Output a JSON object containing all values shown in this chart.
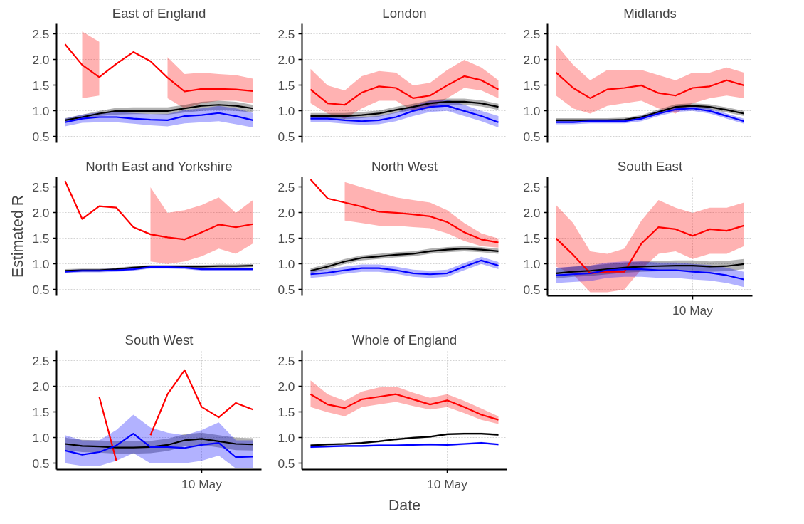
{
  "chart_data": [
    {
      "type": "line",
      "title": "East of England",
      "categories": [
        null,
        null,
        null,
        null,
        null,
        null,
        null,
        null,
        null,
        null,
        null,
        null
      ],
      "ylim": [
        0.38,
        2.7
      ],
      "yticks": [
        {
          "value": 0.5,
          "label": "0.5"
        },
        {
          "value": 1,
          "label": "1.0"
        },
        {
          "value": 1.5,
          "label": "1.5"
        },
        {
          "value": 2,
          "label": "2.0"
        },
        {
          "value": 2.5,
          "label": "2.5"
        }
      ],
      "grid": true,
      "tick_labels": "y",
      "series": [
        {
          "color": "#ff0000",
          "values": [
            2.3,
            1.9,
            1.66,
            1.92,
            2.15,
            1.97,
            1.65,
            1.38,
            1.43,
            1.43,
            1.42,
            1.39
          ],
          "lower": [
            null,
            1.25,
            1.3,
            null,
            null,
            null,
            1.25,
            1.05,
            1.15,
            1.2,
            1.2,
            1.15
          ],
          "upper": [
            null,
            2.55,
            2.35,
            null,
            null,
            null,
            2.05,
            1.72,
            1.75,
            1.72,
            1.7,
            1.63
          ]
        },
        {
          "color": "#000000",
          "values": [
            0.82,
            0.88,
            0.95,
            1.0,
            1.0,
            1.0,
            1.0,
            1.05,
            1.1,
            1.12,
            1.1,
            1.05
          ],
          "lower": [
            0.78,
            0.84,
            0.9,
            0.93,
            0.94,
            0.94,
            0.93,
            0.97,
            1.0,
            1.02,
            1.0,
            0.97
          ],
          "upper": [
            0.86,
            0.93,
            1.0,
            1.06,
            1.07,
            1.07,
            1.07,
            1.12,
            1.18,
            1.2,
            1.18,
            1.12
          ]
        },
        {
          "color": "#0000ff",
          "values": [
            0.78,
            0.85,
            0.88,
            0.88,
            0.85,
            0.83,
            0.82,
            0.9,
            0.92,
            0.96,
            0.9,
            0.82
          ],
          "lower": [
            0.7,
            0.77,
            0.78,
            0.78,
            0.75,
            0.72,
            0.7,
            0.76,
            0.78,
            0.8,
            0.74,
            0.68
          ],
          "upper": [
            0.85,
            0.93,
            0.97,
            0.98,
            0.96,
            0.94,
            0.94,
            1.02,
            1.05,
            1.1,
            1.05,
            0.96
          ]
        }
      ]
    },
    {
      "type": "line",
      "title": "London",
      "categories": [
        null,
        null,
        null,
        null,
        null,
        null,
        null,
        null,
        null,
        null,
        null,
        null
      ],
      "ylim": [
        0.38,
        2.7
      ],
      "yticks": [
        {
          "value": 0.5,
          "label": "0.5"
        },
        {
          "value": 1,
          "label": "1.0"
        },
        {
          "value": 1.5,
          "label": "1.5"
        },
        {
          "value": 2,
          "label": "2.0"
        },
        {
          "value": 2.5,
          "label": "2.5"
        }
      ],
      "grid": true,
      "tick_labels": "y",
      "series": [
        {
          "color": "#ff0000",
          "values": [
            1.42,
            1.15,
            1.12,
            1.36,
            1.48,
            1.45,
            1.25,
            1.3,
            1.5,
            1.68,
            1.6,
            1.42
          ],
          "lower": [
            1.15,
            0.95,
            0.85,
            1.05,
            1.2,
            1.2,
            1.0,
            1.05,
            1.25,
            1.45,
            1.4,
            1.25
          ],
          "upper": [
            1.82,
            1.5,
            1.4,
            1.68,
            1.78,
            1.75,
            1.5,
            1.55,
            1.8,
            2.0,
            1.85,
            1.6
          ]
        },
        {
          "color": "#000000",
          "values": [
            0.9,
            0.9,
            0.9,
            0.92,
            0.95,
            1.02,
            1.08,
            1.15,
            1.18,
            1.18,
            1.15,
            1.08
          ],
          "lower": [
            0.84,
            0.84,
            0.84,
            0.86,
            0.89,
            0.96,
            1.02,
            1.09,
            1.12,
            1.12,
            1.09,
            1.02
          ],
          "upper": [
            0.96,
            0.96,
            0.96,
            0.98,
            1.01,
            1.08,
            1.14,
            1.21,
            1.24,
            1.24,
            1.21,
            1.14
          ]
        },
        {
          "color": "#0000ff",
          "values": [
            0.85,
            0.85,
            0.82,
            0.8,
            0.82,
            0.88,
            1.0,
            1.08,
            1.1,
            1.0,
            0.9,
            0.78
          ],
          "lower": [
            0.78,
            0.78,
            0.75,
            0.73,
            0.74,
            0.8,
            0.9,
            0.98,
            1.0,
            0.9,
            0.8,
            0.68
          ],
          "upper": [
            0.93,
            0.93,
            0.9,
            0.88,
            0.9,
            0.97,
            1.1,
            1.2,
            1.22,
            1.12,
            1.0,
            0.9
          ]
        }
      ]
    },
    {
      "type": "line",
      "title": "Midlands",
      "categories": [
        null,
        null,
        null,
        null,
        null,
        null,
        null,
        null,
        null,
        null,
        null,
        null
      ],
      "ylim": [
        0.38,
        2.7
      ],
      "yticks": [
        {
          "value": 0.5,
          "label": "0.5"
        },
        {
          "value": 1,
          "label": "1.0"
        },
        {
          "value": 1.5,
          "label": "1.5"
        },
        {
          "value": 2,
          "label": "2.0"
        },
        {
          "value": 2.5,
          "label": "2.5"
        }
      ],
      "grid": true,
      "tick_labels": "y",
      "series": [
        {
          "color": "#ff0000",
          "values": [
            1.75,
            1.45,
            1.25,
            1.42,
            1.45,
            1.5,
            1.35,
            1.3,
            1.45,
            1.48,
            1.6,
            1.5
          ],
          "lower": [
            1.3,
            1.05,
            0.95,
            1.1,
            1.15,
            1.2,
            1.05,
            0.95,
            1.15,
            1.25,
            1.3,
            1.25
          ],
          "upper": [
            2.3,
            1.9,
            1.6,
            1.8,
            1.8,
            1.8,
            1.7,
            1.6,
            1.75,
            1.75,
            1.85,
            1.75
          ]
        },
        {
          "color": "#000000",
          "values": [
            0.82,
            0.82,
            0.82,
            0.82,
            0.83,
            0.88,
            0.98,
            1.08,
            1.1,
            1.08,
            1.02,
            0.95
          ],
          "lower": [
            0.78,
            0.78,
            0.78,
            0.78,
            0.79,
            0.84,
            0.93,
            1.03,
            1.05,
            1.03,
            0.97,
            0.9
          ],
          "upper": [
            0.86,
            0.86,
            0.86,
            0.86,
            0.87,
            0.92,
            1.03,
            1.13,
            1.15,
            1.13,
            1.07,
            1.0
          ]
        },
        {
          "color": "#0000ff",
          "values": [
            0.78,
            0.78,
            0.8,
            0.8,
            0.8,
            0.85,
            0.95,
            1.03,
            1.05,
            1.0,
            0.9,
            0.8
          ],
          "lower": [
            0.74,
            0.74,
            0.76,
            0.76,
            0.76,
            0.8,
            0.9,
            0.98,
            1.0,
            0.95,
            0.85,
            0.75
          ],
          "upper": [
            0.82,
            0.82,
            0.84,
            0.84,
            0.84,
            0.9,
            1.0,
            1.08,
            1.1,
            1.05,
            0.95,
            0.85
          ]
        }
      ]
    },
    {
      "type": "line",
      "title": "North East and Yorkshire",
      "ylabel": "Estimated R",
      "categories": [
        null,
        null,
        null,
        null,
        null,
        null,
        null,
        null,
        null,
        null,
        null,
        null
      ],
      "ylim": [
        0.38,
        2.7
      ],
      "yticks": [
        {
          "value": 0.5,
          "label": "0.5"
        },
        {
          "value": 1,
          "label": "1.0"
        },
        {
          "value": 1.5,
          "label": "1.5"
        },
        {
          "value": 2,
          "label": "2.0"
        },
        {
          "value": 2.5,
          "label": "2.5"
        }
      ],
      "grid": true,
      "tick_labels": "y",
      "series": [
        {
          "color": "#ff0000",
          "values": [
            2.62,
            1.88,
            2.13,
            2.1,
            1.72,
            1.58,
            1.52,
            1.48,
            1.62,
            1.77,
            1.72,
            1.78
          ],
          "lower": [
            null,
            null,
            null,
            null,
            null,
            1.05,
            1.0,
            1.05,
            1.15,
            1.3,
            1.2,
            1.4
          ],
          "upper": [
            null,
            null,
            null,
            null,
            null,
            2.5,
            2.0,
            2.05,
            2.15,
            2.3,
            2.0,
            2.25
          ]
        },
        {
          "color": "#000000",
          "values": [
            0.87,
            0.88,
            0.88,
            0.9,
            0.93,
            0.95,
            0.95,
            0.95,
            0.95,
            0.96,
            0.96,
            0.97
          ],
          "lower": [
            0.84,
            0.85,
            0.85,
            0.87,
            0.9,
            0.92,
            0.92,
            0.92,
            0.92,
            0.93,
            0.93,
            0.94
          ],
          "upper": [
            0.9,
            0.91,
            0.91,
            0.93,
            0.96,
            0.98,
            0.98,
            0.98,
            0.98,
            0.99,
            0.99,
            1.0
          ]
        },
        {
          "color": "#0000ff",
          "values": [
            0.85,
            0.87,
            0.87,
            0.88,
            0.9,
            0.94,
            0.94,
            0.93,
            0.9,
            0.9,
            0.9,
            0.9
          ],
          "lower": [
            0.82,
            0.84,
            0.84,
            0.85,
            0.87,
            0.91,
            0.91,
            0.9,
            0.87,
            0.87,
            0.87,
            0.87
          ],
          "upper": [
            0.88,
            0.9,
            0.9,
            0.91,
            0.93,
            0.97,
            0.97,
            0.96,
            0.93,
            0.93,
            0.93,
            0.93
          ]
        }
      ]
    },
    {
      "type": "line",
      "title": "North West",
      "categories": [
        null,
        null,
        null,
        null,
        null,
        null,
        null,
        null,
        null,
        null,
        null,
        null
      ],
      "ylim": [
        0.38,
        2.7
      ],
      "yticks": [
        {
          "value": 0.5,
          "label": "0.5"
        },
        {
          "value": 1,
          "label": "1.0"
        },
        {
          "value": 1.5,
          "label": "1.5"
        },
        {
          "value": 2,
          "label": "2.0"
        },
        {
          "value": 2.5,
          "label": "2.5"
        }
      ],
      "grid": true,
      "tick_labels": "y",
      "series": [
        {
          "color": "#ff0000",
          "values": [
            2.65,
            2.28,
            2.2,
            2.12,
            2.02,
            2.0,
            1.97,
            1.93,
            1.82,
            1.62,
            1.48,
            1.42
          ],
          "lower": [
            null,
            null,
            1.85,
            1.8,
            1.75,
            1.75,
            1.72,
            1.7,
            1.6,
            1.45,
            1.35,
            1.32
          ],
          "upper": [
            null,
            null,
            2.6,
            2.5,
            2.4,
            2.3,
            2.25,
            2.2,
            2.05,
            1.8,
            1.6,
            1.5
          ]
        },
        {
          "color": "#000000",
          "values": [
            0.87,
            0.95,
            1.05,
            1.12,
            1.15,
            1.18,
            1.2,
            1.25,
            1.28,
            1.3,
            1.28,
            1.25
          ],
          "lower": [
            0.82,
            0.9,
            1.0,
            1.07,
            1.1,
            1.13,
            1.15,
            1.2,
            1.23,
            1.25,
            1.23,
            1.2
          ],
          "upper": [
            0.92,
            1.0,
            1.1,
            1.17,
            1.2,
            1.23,
            1.25,
            1.3,
            1.33,
            1.35,
            1.33,
            1.3
          ]
        },
        {
          "color": "#0000ff",
          "values": [
            0.8,
            0.83,
            0.88,
            0.92,
            0.92,
            0.88,
            0.82,
            0.8,
            0.82,
            0.95,
            1.07,
            0.97
          ],
          "lower": [
            0.73,
            0.76,
            0.81,
            0.85,
            0.85,
            0.81,
            0.75,
            0.73,
            0.75,
            0.88,
            1.0,
            0.9
          ],
          "upper": [
            0.87,
            0.9,
            0.95,
            0.99,
            0.99,
            0.95,
            0.89,
            0.87,
            0.89,
            1.02,
            1.14,
            1.04
          ]
        }
      ]
    },
    {
      "type": "line",
      "title": "South East",
      "categories": [
        null,
        null,
        null,
        null,
        null,
        null,
        null,
        null,
        "10 May",
        null,
        null,
        null
      ],
      "ylim": [
        0.38,
        2.7
      ],
      "yticks": [
        {
          "value": 0.5,
          "label": "0.5"
        },
        {
          "value": 1,
          "label": "1.0"
        },
        {
          "value": 1.5,
          "label": "1.5"
        },
        {
          "value": 2,
          "label": "2.0"
        },
        {
          "value": 2.5,
          "label": "2.5"
        }
      ],
      "grid": true,
      "series": [
        {
          "color": "#ff0000",
          "values": [
            1.5,
            1.18,
            0.82,
            0.85,
            0.85,
            1.4,
            1.72,
            1.68,
            1.55,
            1.68,
            1.65,
            1.75
          ],
          "lower": [
            0.95,
            0.8,
            0.45,
            0.45,
            0.5,
            0.9,
            1.2,
            1.25,
            1.1,
            1.2,
            1.2,
            1.35
          ],
          "upper": [
            2.15,
            1.8,
            1.25,
            1.2,
            1.3,
            1.85,
            2.25,
            2.1,
            2.0,
            2.1,
            2.1,
            2.2
          ]
        },
        {
          "color": "#000000",
          "values": [
            0.82,
            0.85,
            0.87,
            0.9,
            0.93,
            0.95,
            0.96,
            0.97,
            0.97,
            0.95,
            0.96,
            1.0
          ],
          "lower": [
            0.72,
            0.75,
            0.77,
            0.8,
            0.83,
            0.85,
            0.86,
            0.87,
            0.87,
            0.85,
            0.86,
            0.9
          ],
          "upper": [
            0.92,
            0.95,
            0.97,
            1.0,
            1.03,
            1.05,
            1.06,
            1.07,
            1.07,
            1.05,
            1.06,
            1.1
          ]
        },
        {
          "color": "#0000ff",
          "values": [
            0.78,
            0.8,
            0.82,
            0.88,
            0.9,
            0.9,
            0.88,
            0.88,
            0.85,
            0.83,
            0.78,
            0.7
          ],
          "lower": [
            0.63,
            0.65,
            0.67,
            0.73,
            0.75,
            0.75,
            0.73,
            0.73,
            0.7,
            0.68,
            0.63,
            0.55
          ],
          "upper": [
            0.93,
            0.95,
            0.97,
            1.03,
            1.05,
            1.05,
            1.03,
            1.03,
            1.0,
            0.98,
            0.93,
            0.85
          ]
        }
      ]
    },
    {
      "type": "line",
      "title": "South West",
      "categories": [
        null,
        null,
        null,
        null,
        null,
        null,
        null,
        null,
        "10 May",
        null,
        null,
        null
      ],
      "ylim": [
        0.38,
        2.7
      ],
      "yticks": [
        {
          "value": 0.5,
          "label": "0.5"
        },
        {
          "value": 1,
          "label": "1.0"
        },
        {
          "value": 1.5,
          "label": "1.5"
        },
        {
          "value": 2,
          "label": "2.0"
        },
        {
          "value": 2.5,
          "label": "2.5"
        }
      ],
      "grid": true,
      "series": [
        {
          "color": "#ff0000",
          "values": [
            null,
            null,
            1.8,
            0.55,
            null,
            1.05,
            1.85,
            2.32,
            1.6,
            1.4,
            1.68,
            1.55
          ]
        },
        {
          "color": "#000000",
          "values": [
            0.88,
            0.84,
            0.83,
            0.81,
            0.81,
            0.82,
            0.86,
            0.95,
            0.98,
            0.93,
            0.88,
            0.87
          ],
          "lower": [
            0.76,
            0.72,
            0.71,
            0.69,
            0.69,
            0.7,
            0.74,
            0.83,
            0.86,
            0.81,
            0.76,
            0.75
          ],
          "upper": [
            1.0,
            0.96,
            0.95,
            0.93,
            0.93,
            0.94,
            0.98,
            1.07,
            1.1,
            1.05,
            1.0,
            0.99
          ]
        },
        {
          "color": "#0000ff",
          "values": [
            0.75,
            0.67,
            0.72,
            0.85,
            1.08,
            0.82,
            0.82,
            0.8,
            0.86,
            0.9,
            0.62,
            0.63
          ],
          "lower": [
            0.5,
            0.45,
            0.45,
            0.55,
            0.7,
            0.5,
            0.5,
            0.5,
            0.55,
            0.65,
            0.4,
            0.4
          ],
          "upper": [
            1.05,
            0.95,
            0.95,
            1.15,
            1.45,
            1.2,
            1.1,
            1.05,
            1.15,
            1.3,
            0.95,
            0.95
          ]
        }
      ]
    },
    {
      "type": "line",
      "title": "Whole of England",
      "xlabel": "Date",
      "categories": [
        null,
        null,
        null,
        null,
        null,
        null,
        null,
        null,
        "10 May",
        null,
        null,
        null
      ],
      "ylim": [
        0.38,
        2.7
      ],
      "yticks": [
        {
          "value": 0.5,
          "label": "0.5"
        },
        {
          "value": 1,
          "label": "1.0"
        },
        {
          "value": 1.5,
          "label": "1.5"
        },
        {
          "value": 2,
          "label": "2.0"
        },
        {
          "value": 2.5,
          "label": "2.5"
        }
      ],
      "grid": true,
      "series": [
        {
          "color": "#ff0000",
          "values": [
            1.85,
            1.65,
            1.58,
            1.75,
            1.8,
            1.85,
            1.75,
            1.65,
            1.73,
            1.6,
            1.45,
            1.35
          ],
          "lower": [
            1.6,
            1.5,
            1.42,
            1.6,
            1.65,
            1.7,
            1.62,
            1.55,
            1.6,
            1.48,
            1.35,
            1.27
          ],
          "upper": [
            2.12,
            1.85,
            1.72,
            1.9,
            1.98,
            2.0,
            1.88,
            1.78,
            1.85,
            1.72,
            1.57,
            1.42
          ]
        },
        {
          "color": "#000000",
          "values": [
            0.85,
            0.87,
            0.88,
            0.9,
            0.93,
            0.97,
            1.0,
            1.02,
            1.07,
            1.08,
            1.08,
            1.06
          ],
          "lower": [
            0.83,
            0.85,
            0.86,
            0.88,
            0.91,
            0.95,
            0.98,
            1.0,
            1.05,
            1.06,
            1.06,
            1.04
          ],
          "upper": [
            0.87,
            0.89,
            0.9,
            0.92,
            0.95,
            0.99,
            1.02,
            1.04,
            1.09,
            1.1,
            1.1,
            1.08
          ]
        },
        {
          "color": "#0000ff",
          "values": [
            0.82,
            0.83,
            0.84,
            0.84,
            0.85,
            0.85,
            0.86,
            0.87,
            0.86,
            0.88,
            0.9,
            0.87
          ],
          "lower": [
            0.8,
            0.81,
            0.82,
            0.82,
            0.83,
            0.83,
            0.84,
            0.85,
            0.84,
            0.86,
            0.88,
            0.85
          ],
          "upper": [
            0.84,
            0.85,
            0.86,
            0.86,
            0.87,
            0.87,
            0.88,
            0.89,
            0.88,
            0.9,
            0.92,
            0.89
          ]
        }
      ]
    }
  ]
}
